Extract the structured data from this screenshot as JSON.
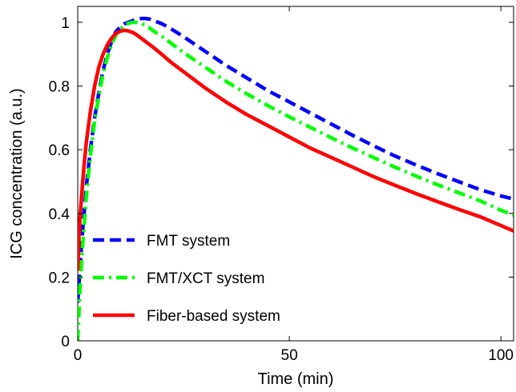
{
  "chart_data": {
    "type": "line",
    "title": "",
    "xlabel": "Time (min)",
    "ylabel": "ICG concentration (a.u.)",
    "xlim": [
      0,
      103
    ],
    "ylim": [
      0,
      1.05
    ],
    "x_ticks": [
      0,
      50,
      100
    ],
    "y_ticks": [
      0,
      0.2,
      0.4,
      0.6,
      0.8,
      1
    ],
    "x_tick_labels": [
      "0",
      "50",
      "100"
    ],
    "y_tick_labels": [
      "0",
      "0.2",
      "0.4",
      "0.6",
      "0.8",
      "1"
    ],
    "grid": false,
    "legend_position": "bottom-left",
    "series": [
      {
        "name": "FMT system",
        "color": "#0000ff",
        "style": "dashed",
        "x": [
          0,
          0.5,
          1,
          2,
          3,
          4,
          5,
          6,
          7,
          8,
          9,
          10,
          11,
          12,
          13,
          14,
          15,
          16,
          17,
          18,
          20,
          22,
          25,
          30,
          35,
          40,
          45,
          50,
          55,
          60,
          65,
          70,
          75,
          80,
          85,
          90,
          95,
          100,
          103
        ],
        "y": [
          0.12,
          0.22,
          0.32,
          0.48,
          0.6,
          0.7,
          0.78,
          0.85,
          0.9,
          0.94,
          0.97,
          0.985,
          0.995,
          1.0,
          1.005,
          1.01,
          1.012,
          1.012,
          1.01,
          1.005,
          0.995,
          0.98,
          0.955,
          0.91,
          0.865,
          0.825,
          0.785,
          0.75,
          0.715,
          0.68,
          0.645,
          0.612,
          0.58,
          0.552,
          0.525,
          0.5,
          0.475,
          0.455,
          0.445
        ]
      },
      {
        "name": "FMT/XCT system",
        "color": "#00ff00",
        "style": "dashdot",
        "x": [
          0,
          0.5,
          1,
          2,
          3,
          4,
          5,
          6,
          7,
          8,
          9,
          10,
          11,
          12,
          13,
          14,
          15,
          16,
          17,
          18,
          20,
          22,
          25,
          30,
          35,
          40,
          45,
          50,
          55,
          60,
          65,
          70,
          75,
          80,
          85,
          90,
          95,
          100,
          103
        ],
        "y": [
          0.0,
          0.15,
          0.27,
          0.45,
          0.58,
          0.69,
          0.77,
          0.84,
          0.89,
          0.93,
          0.96,
          0.978,
          0.99,
          0.997,
          1.0,
          1.0,
          0.997,
          0.99,
          0.982,
          0.972,
          0.955,
          0.935,
          0.905,
          0.86,
          0.815,
          0.775,
          0.738,
          0.703,
          0.67,
          0.637,
          0.605,
          0.575,
          0.545,
          0.517,
          0.49,
          0.465,
          0.44,
          0.41,
          0.395
        ]
      },
      {
        "name": "Fiber-based system",
        "color": "#ff0000",
        "style": "solid",
        "x": [
          0,
          0.3,
          0.6,
          1,
          1.5,
          2,
          3,
          4,
          5,
          6,
          7,
          8,
          9,
          10,
          11,
          12,
          13,
          14,
          15,
          16,
          18,
          20,
          22,
          25,
          30,
          35,
          40,
          45,
          50,
          55,
          60,
          65,
          70,
          75,
          80,
          85,
          90,
          95,
          100,
          103
        ],
        "y": [
          0.22,
          0.33,
          0.4,
          0.47,
          0.55,
          0.62,
          0.72,
          0.8,
          0.86,
          0.9,
          0.93,
          0.95,
          0.965,
          0.972,
          0.975,
          0.973,
          0.968,
          0.96,
          0.95,
          0.94,
          0.92,
          0.898,
          0.875,
          0.845,
          0.795,
          0.75,
          0.71,
          0.675,
          0.64,
          0.605,
          0.575,
          0.545,
          0.515,
          0.488,
          0.462,
          0.437,
          0.413,
          0.39,
          0.362,
          0.345
        ]
      }
    ]
  }
}
